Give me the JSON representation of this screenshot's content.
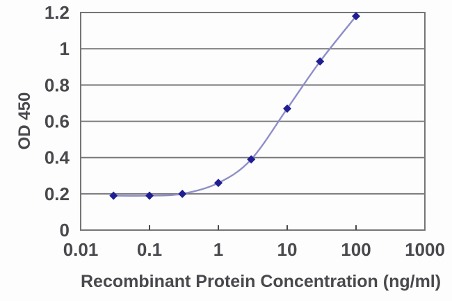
{
  "chart_data": {
    "type": "line",
    "title": "",
    "xlabel": "Recombinant Protein Concentration (ng/ml)",
    "ylabel": "OD 450",
    "x_scale": "log",
    "x": [
      0.03,
      0.1,
      0.3,
      1,
      3,
      10,
      30,
      100
    ],
    "y": [
      0.19,
      0.19,
      0.2,
      0.26,
      0.39,
      0.67,
      0.93,
      1.18
    ],
    "xlim": [
      0.01,
      1000
    ],
    "ylim": [
      0,
      1.2
    ],
    "x_ticks": [
      0.01,
      0.1,
      1,
      10,
      100,
      1000
    ],
    "x_tick_labels": [
      "0.01",
      "0.1",
      "1",
      "10",
      "100",
      "1000"
    ],
    "y_ticks": [
      0,
      0.2,
      0.4,
      0.6,
      0.8,
      1,
      1.2
    ],
    "y_tick_labels": [
      "0",
      "0.2",
      "0.4",
      "0.6",
      "0.8",
      "1",
      "1.2"
    ],
    "grid": "horizontal",
    "legend": "none",
    "marker": "diamond",
    "colors": {
      "line": "#8e8ec9",
      "marker": "#1f1f93",
      "grid": "#757578",
      "frame": "#757578",
      "tick_mark": "#4a4a4a",
      "text": "#49494d",
      "background": "#fdfdfd"
    }
  }
}
